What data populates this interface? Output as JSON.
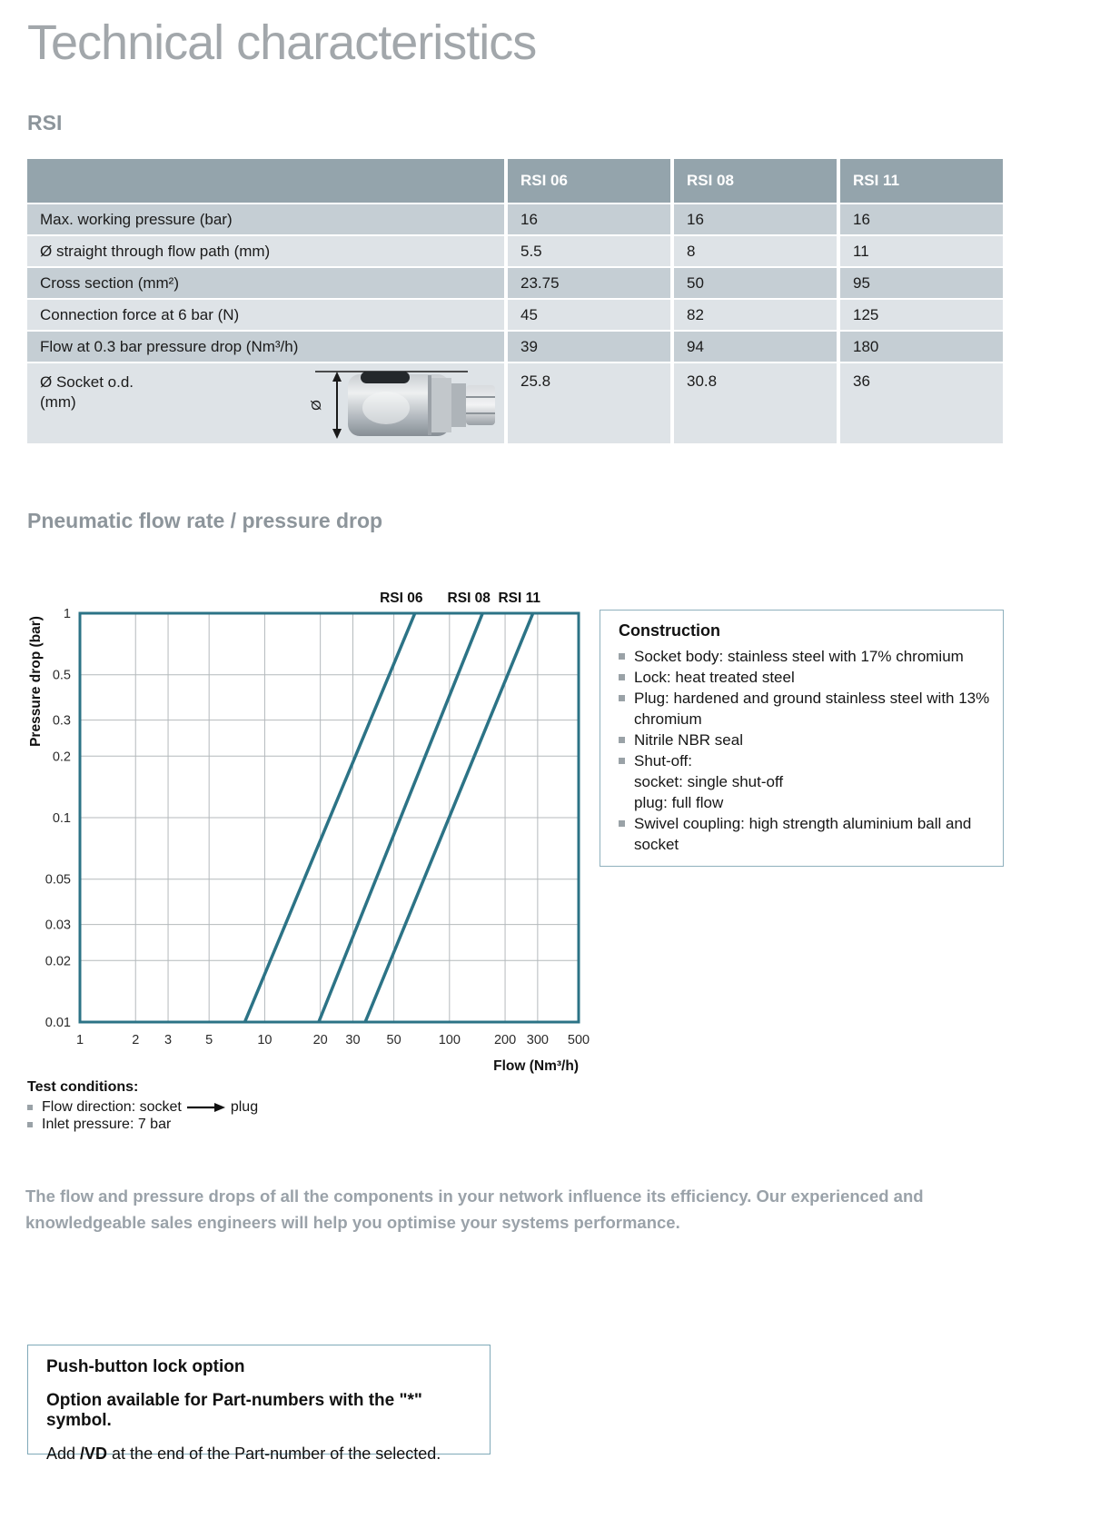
{
  "page": {
    "title": "Technical characteristics",
    "rsi_heading": "RSI",
    "chart_heading": "Pneumatic flow rate / pressure drop"
  },
  "colors": {
    "accent_teal": "#2c7386",
    "table_header_bg": "#94a4ac",
    "row_dark_bg": "#c5ced4",
    "row_light_bg": "#dee3e7",
    "heading_gray": "#8d959b",
    "title_gray": "#a2a7ab",
    "note_gray": "#9aa2a9",
    "box_border": "#8fb0bd",
    "box_border2": "#7fa9b8"
  },
  "spec_table": {
    "columns": [
      "RSI 06",
      "RSI 08",
      "RSI 11"
    ],
    "rows": [
      {
        "label": "Max. working pressure (bar)",
        "values": [
          "16",
          "16",
          "16"
        ]
      },
      {
        "label": "Ø straight through flow path (mm)",
        "values": [
          "5.5",
          "8",
          "11"
        ]
      },
      {
        "label": "Cross section (mm²)",
        "values": [
          "23.75",
          "50",
          "95"
        ]
      },
      {
        "label": "Connection force at 6 bar (N)",
        "values": [
          "45",
          "82",
          "125"
        ]
      },
      {
        "label": "Flow at 0.3 bar pressure drop (Nm³/h)",
        "values": [
          "39",
          "94",
          "180"
        ]
      },
      {
        "label": "Ø Socket o.d.",
        "label_line2": "(mm)",
        "values": [
          "25.8",
          "30.8",
          "36"
        ],
        "photo": "socket-coupling-photo",
        "photo_dimension_label": "Ø"
      }
    ]
  },
  "chart_data": {
    "type": "line",
    "title": "Pneumatic flow rate / pressure drop",
    "xlabel": "Flow (Nm³/h)",
    "ylabel": "Pressure drop (bar)",
    "xscale": "log",
    "yscale": "log",
    "xlim": [
      1,
      500
    ],
    "ylim": [
      0.01,
      1
    ],
    "xticks": [
      1,
      2,
      3,
      5,
      10,
      20,
      30,
      50,
      100,
      200,
      300,
      500
    ],
    "yticks": [
      1,
      0.5,
      0.3,
      0.2,
      0.1,
      0.05,
      0.03,
      0.02,
      0.01
    ],
    "grid": true,
    "legend_position": "top",
    "line_color": "#2c7386",
    "series": [
      {
        "name": "RSI 06",
        "points": [
          [
            7.8,
            0.01
          ],
          [
            65,
            1
          ]
        ]
      },
      {
        "name": "RSI 08",
        "points": [
          [
            19.6,
            0.01
          ],
          [
            151,
            1
          ]
        ]
      },
      {
        "name": "RSI 11",
        "points": [
          [
            35,
            0.01
          ],
          [
            283,
            1
          ]
        ]
      }
    ]
  },
  "construction": {
    "title": "Construction",
    "items": [
      {
        "text": "Socket body: stainless steel with 17% chromium"
      },
      {
        "text": "Lock: heat treated steel"
      },
      {
        "text": "Plug: hardened and ground stainless steel with 13% chromium"
      },
      {
        "text": "Nitrile NBR seal"
      },
      {
        "text": "Shut-off:",
        "sub": [
          "socket: single shut-off",
          "plug: full flow"
        ]
      },
      {
        "text": "Swivel coupling: high strength aluminium ball and socket"
      }
    ]
  },
  "test_conditions": {
    "title": "Test conditions:",
    "items": [
      {
        "prefix": "Flow direction: socket",
        "arrow": "right-arrow",
        "suffix": "plug"
      },
      {
        "text": "Inlet pressure: 7 bar"
      }
    ]
  },
  "note": {
    "text": "The flow and pressure drops of all the components in your network influence its efficiency. Our experienced and knowledgeable sales engineers will help you optimise your systems performance."
  },
  "push_button_option": {
    "title": "Push-button lock option",
    "bold_line": "Option available for Part-numbers with the \"*\" symbol.",
    "add_prefix": "Add ",
    "add_code": "/VD",
    "add_suffix": " at the end of the Part-number of the selected."
  }
}
